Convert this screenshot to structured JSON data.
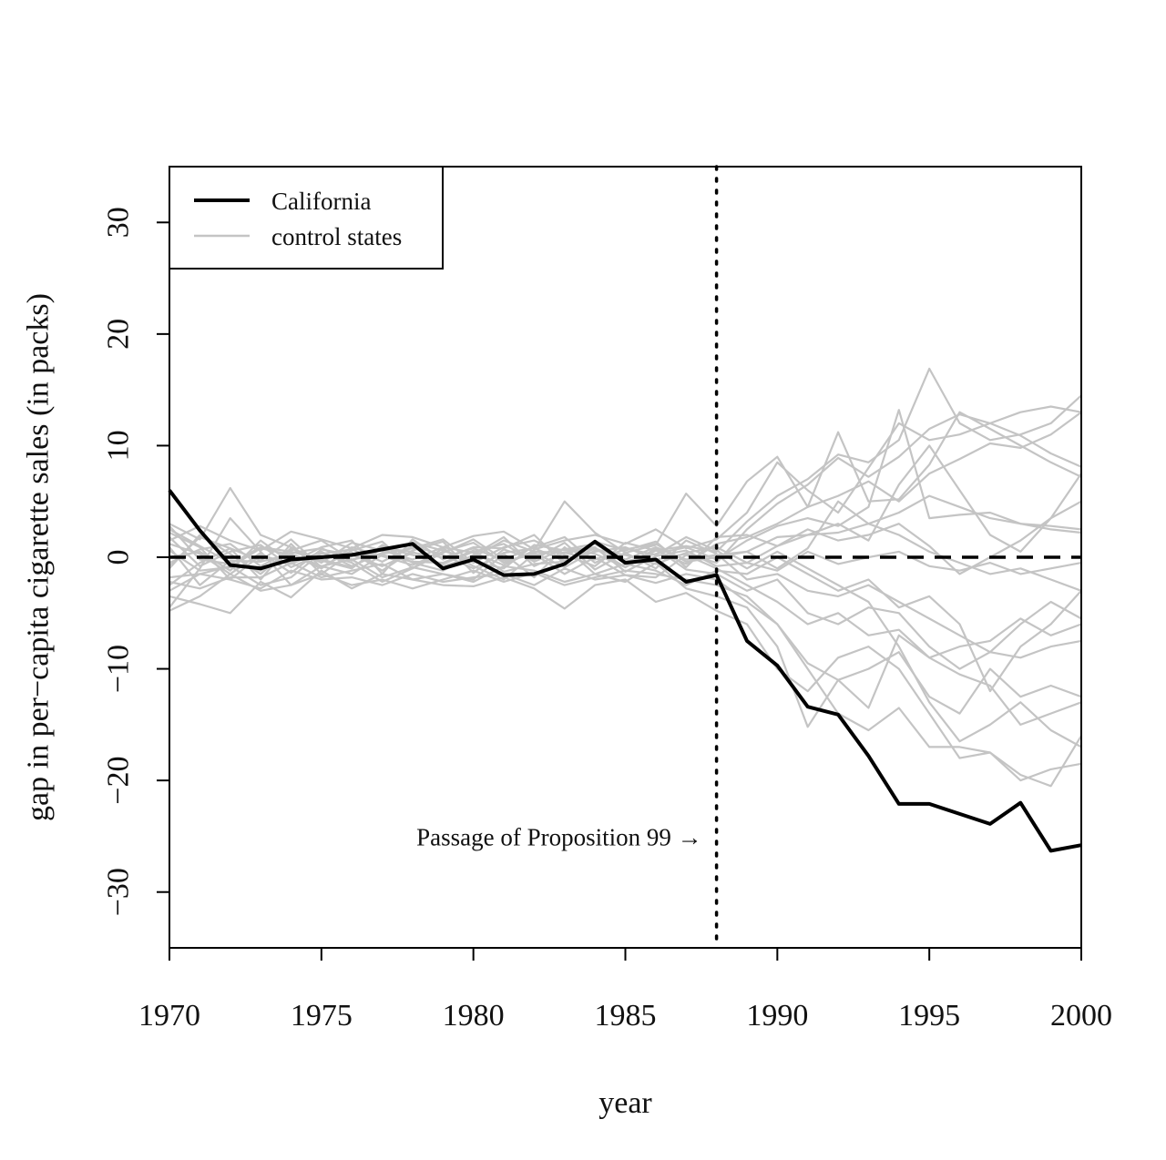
{
  "chart_data": {
    "type": "line",
    "xlabel": "year",
    "ylabel": "gap in per−capita cigarette sales (in packs)",
    "xlim": [
      1970,
      2000
    ],
    "ylim": [
      -35,
      35
    ],
    "x_ticks": [
      1970,
      1975,
      1980,
      1985,
      1990,
      1995,
      2000
    ],
    "y_ticks": [
      -30,
      -20,
      -10,
      0,
      10,
      20,
      30
    ],
    "x_tick_labels": [
      "1970",
      "1975",
      "1980",
      "1985",
      "1990",
      "1995",
      "2000"
    ],
    "y_tick_labels": [
      "−30",
      "−20",
      "−10",
      "0",
      "10",
      "20",
      "30"
    ],
    "grid": false,
    "legend": {
      "position": "top-left",
      "entries": [
        {
          "label": "California",
          "color": "#000000"
        },
        {
          "label": "control states",
          "color": "#c4c4c4"
        }
      ]
    },
    "reference_lines": {
      "zero_dashed_y": 0,
      "treatment_dotted_x": 1988
    },
    "annotation": {
      "text": "Passage of Proposition 99 →",
      "x": 1988,
      "y": -25
    },
    "x": [
      1970,
      1971,
      1972,
      1973,
      1974,
      1975,
      1976,
      1977,
      1978,
      1979,
      1980,
      1981,
      1982,
      1983,
      1984,
      1985,
      1986,
      1987,
      1988,
      1989,
      1990,
      1991,
      1992,
      1993,
      1994,
      1995,
      1996,
      1997,
      1998,
      1999,
      2000
    ],
    "series": [
      {
        "name": "California",
        "color": "#000000",
        "values": [
          6.0,
          2.4,
          -0.7,
          -1.0,
          -0.2,
          0.0,
          0.2,
          0.7,
          1.2,
          -1.0,
          -0.2,
          -1.6,
          -1.5,
          -0.6,
          1.4,
          -0.5,
          -0.2,
          -2.2,
          -1.6,
          -7.5,
          -9.7,
          -13.4,
          -14.1,
          -17.8,
          -22.1,
          -22.1,
          -23.0,
          -23.9,
          -22.0,
          -26.3,
          -25.8
        ]
      },
      {
        "name": "control states",
        "color": "#c4c4c4",
        "values": [
          2.5,
          1.0,
          -0.5,
          -1.2,
          0.4,
          0.8,
          -0.3,
          0.9,
          0.2,
          -0.6,
          0.5,
          1.2,
          -0.4,
          0.8,
          0.3,
          -0.9,
          0.6,
          1.0,
          0.5,
          3.2,
          5.5,
          7.0,
          9.2,
          8.5,
          10.5,
          16.9,
          12.0,
          10.5,
          11.0,
          12.0,
          14.5
        ]
      },
      {
        "values": [
          1.8,
          -0.8,
          0.5,
          1.1,
          -0.9,
          0.3,
          0.7,
          -0.4,
          1.0,
          0.2,
          -1.0,
          0.4,
          0.8,
          -0.3,
          0.5,
          0.9,
          -0.2,
          0.3,
          -0.5,
          2.5,
          4.8,
          6.5,
          8.9,
          7.2,
          9.0,
          11.5,
          12.8,
          12.0,
          10.9,
          9.3,
          8.1
        ]
      },
      {
        "values": [
          3.0,
          1.6,
          6.2,
          2.0,
          0.9,
          -0.5,
          1.3,
          0.6,
          -0.2,
          0.9,
          0.4,
          -0.7,
          0.6,
          5.0,
          2.2,
          0.4,
          1.1,
          5.7,
          2.8,
          6.8,
          9.0,
          4.5,
          11.2,
          5.0,
          5.2,
          8.3,
          13.0,
          11.5,
          10.0,
          8.5,
          7.2
        ]
      },
      {
        "values": [
          -0.5,
          0.7,
          1.2,
          -0.8,
          0.6,
          1.5,
          -0.2,
          0.3,
          0.8,
          1.6,
          -0.5,
          0.9,
          1.5,
          0.2,
          -0.8,
          1.3,
          0.6,
          -0.6,
          1.2,
          1.8,
          3.0,
          4.5,
          5.5,
          6.8,
          5.0,
          7.5,
          8.8,
          10.2,
          9.8,
          11.0,
          13.0
        ]
      },
      {
        "values": [
          1.2,
          0.3,
          -1.5,
          0.4,
          -1.4,
          0.7,
          0.2,
          -0.8,
          0.4,
          0.0,
          0.8,
          -0.3,
          0.2,
          0.7,
          1.2,
          -0.4,
          0.3,
          0.9,
          -0.2,
          1.5,
          2.8,
          3.5,
          2.8,
          4.5,
          13.2,
          3.5,
          3.8,
          4.0,
          3.0,
          2.5,
          2.2
        ]
      },
      {
        "values": [
          0.6,
          -1.2,
          -0.9,
          0.8,
          0.2,
          -1.0,
          0.9,
          0.1,
          -0.7,
          0.5,
          1.3,
          -0.5,
          0.4,
          -0.9,
          0.6,
          0.2,
          -0.6,
          0.4,
          0.9,
          -0.5,
          1.0,
          2.0,
          3.0,
          1.5,
          6.5,
          10.0,
          6.0,
          2.0,
          0.5,
          3.5,
          7.5
        ]
      },
      {
        "values": [
          -1.0,
          2.0,
          0.3,
          -1.5,
          0.8,
          -0.3,
          -1.0,
          1.1,
          -0.5,
          -1.2,
          0.2,
          1.8,
          -0.8,
          0.4,
          -0.2,
          0.7,
          1.2,
          -0.4,
          0.0,
          0.5,
          -1.0,
          0.8,
          5.0,
          3.0,
          2.0,
          0.5,
          -0.5,
          -1.5,
          -1.0,
          -2.0,
          -3.0
        ]
      },
      {
        "values": [
          2.2,
          0.9,
          -2.0,
          0.2,
          -0.6,
          0.5,
          -0.8,
          0.4,
          1.3,
          0.6,
          -0.4,
          -1.0,
          1.1,
          0.6,
          0.9,
          -1.3,
          0.1,
          0.6,
          -0.8,
          -0.5,
          -1.2,
          0.5,
          -0.6,
          0.0,
          0.5,
          -0.8,
          -1.2,
          -0.5,
          -1.5,
          -1.0,
          -0.5
        ]
      },
      {
        "values": [
          -2.5,
          -0.5,
          0.8,
          -2.0,
          1.2,
          -1.5,
          0.4,
          -1.2,
          0.6,
          1.4,
          -1.4,
          0.7,
          -0.2,
          1.3,
          -1.1,
          0.4,
          -1.0,
          1.5,
          0.3,
          -2.0,
          -1.5,
          -3.0,
          -3.5,
          -2.5,
          -4.0,
          -5.5,
          -7.0,
          -8.5,
          -9.0,
          -8.0,
          -7.5
        ]
      },
      {
        "values": [
          0.9,
          -2.5,
          -0.3,
          -0.4,
          0.3,
          -0.8,
          -1.5,
          0.2,
          -0.4,
          -0.5,
          0.6,
          -1.3,
          -0.6,
          -0.4,
          0.8,
          -0.9,
          0.8,
          -1.1,
          -1.5,
          -3.0,
          -2.0,
          -5.0,
          -6.0,
          -4.5,
          -5.0,
          -8.0,
          -10.0,
          -8.5,
          -6.0,
          -4.0,
          -5.5
        ]
      },
      {
        "values": [
          -3.0,
          -1.5,
          -2.0,
          -2.8,
          -1.2,
          -2.0,
          -1.8,
          -2.5,
          -1.5,
          -2.2,
          -1.8,
          -1.5,
          -2.5,
          -1.0,
          -2.0,
          -1.6,
          -2.3,
          -1.5,
          -2.0,
          -4.0,
          -6.0,
          -9.5,
          -11.0,
          -10.0,
          -8.5,
          -12.5,
          -14.0,
          -10.0,
          -12.5,
          -11.5,
          -12.5
        ]
      },
      {
        "values": [
          -4.5,
          -1.0,
          3.5,
          0.5,
          -2.5,
          -0.8,
          -0.2,
          -1.8,
          -0.9,
          -1.5,
          -2.0,
          0.3,
          -1.8,
          0.9,
          -1.5,
          -2.2,
          -0.5,
          -2.8,
          -3.5,
          -4.5,
          -8.0,
          -15.2,
          -11.0,
          -13.5,
          -7.0,
          -9.0,
          -10.5,
          -11.5,
          -15.0,
          -14.0,
          -13.0
        ]
      },
      {
        "values": [
          -4.8,
          -3.5,
          -1.5,
          -3.0,
          -2.5,
          -1.5,
          -2.5,
          -2.0,
          -2.8,
          -2.0,
          -1.2,
          -2.2,
          -1.4,
          -2.5,
          -1.8,
          -1.2,
          -1.5,
          -2.0,
          -2.5,
          -3.5,
          -6.0,
          -10.0,
          -14.0,
          -15.5,
          -13.5,
          -17.0,
          -17.0,
          -17.5,
          -20.0,
          -19.0,
          -18.5
        ]
      },
      {
        "values": [
          -3.5,
          -4.2,
          -5.0,
          -2.2,
          -3.6,
          -1.2,
          -2.8,
          -1.5,
          -2.0,
          -2.5,
          -2.6,
          -1.8,
          -2.8,
          -4.6,
          -2.5,
          -2.0,
          -4.0,
          -3.2,
          -4.8,
          -6.0,
          -10.0,
          -12.0,
          -9.0,
          -8.0,
          -10.0,
          -14.0,
          -18.0,
          -17.5,
          -19.5,
          -20.5,
          -16.0
        ]
      },
      {
        "values": [
          1.5,
          2.8,
          1.5,
          0.6,
          2.3,
          1.6,
          0.8,
          2.0,
          1.8,
          0.9,
          1.9,
          2.3,
          0.7,
          1.5,
          2.0,
          1.2,
          2.5,
          0.8,
          1.6,
          4.0,
          8.5,
          6.0,
          4.0,
          8.0,
          12.0,
          10.5,
          11.0,
          12.0,
          13.0,
          13.5,
          13.0
        ]
      },
      {
        "values": [
          0.0,
          0.5,
          -1.2,
          1.5,
          -0.5,
          0.9,
          1.5,
          -1.5,
          1.6,
          -0.2,
          0.9,
          0.8,
          2.0,
          -0.6,
          1.4,
          0.6,
          1.4,
          -0.9,
          1.8,
          2.0,
          1.0,
          2.5,
          1.5,
          2.0,
          3.0,
          1.0,
          -1.5,
          0.0,
          1.5,
          3.5,
          5.0
        ]
      },
      {
        "values": [
          -1.8,
          -1.5,
          -0.8,
          -2.5,
          -1.8,
          0.4,
          -0.5,
          -2.2,
          -1.0,
          0.8,
          -0.8,
          -2.0,
          0.3,
          -1.5,
          0.0,
          -1.6,
          -1.8,
          0.2,
          -1.0,
          -2.5,
          -4.0,
          -6.0,
          -5.0,
          -7.0,
          -6.5,
          -9.0,
          -8.0,
          -7.5,
          -5.5,
          -7.0,
          -6.0
        ]
      },
      {
        "values": [
          -0.8,
          1.8,
          0.8,
          -0.3,
          1.6,
          -0.9,
          0.6,
          1.4,
          -1.0,
          0.4,
          1.6,
          -0.2,
          0.9,
          1.8,
          -0.5,
          0.8,
          0.2,
          1.8,
          0.6,
          -1.0,
          0.5,
          -1.0,
          -2.5,
          -4.0,
          -8.0,
          -13.0,
          -16.5,
          -15.0,
          -13.0,
          -15.5,
          -17.0
        ]
      },
      {
        "values": [
          2.8,
          -0.2,
          -0.6,
          0.9,
          0.5,
          -0.2,
          -0.9,
          0.8,
          0.5,
          -0.8,
          0.0,
          1.5,
          0.5,
          0.4,
          0.8,
          -0.2,
          0.9,
          -0.2,
          0.2,
          0.5,
          1.8,
          2.0,
          2.2,
          3.0,
          4.0,
          5.5,
          4.5,
          3.5,
          3.0,
          2.8,
          2.5
        ]
      },
      {
        "values": [
          -2.2,
          -2.8,
          -1.8,
          -1.8,
          -0.5,
          -1.8,
          -1.2,
          -0.6,
          -2.0,
          -1.5,
          -2.2,
          -0.8,
          -1.2,
          -2.2,
          -1.5,
          -0.6,
          -1.2,
          -2.5,
          -1.2,
          -1.5,
          0.0,
          -1.5,
          -3.0,
          -2.0,
          -4.5,
          -3.5,
          -6.0,
          -12.0,
          -8.0,
          -6.0,
          -3.0
        ]
      }
    ]
  }
}
